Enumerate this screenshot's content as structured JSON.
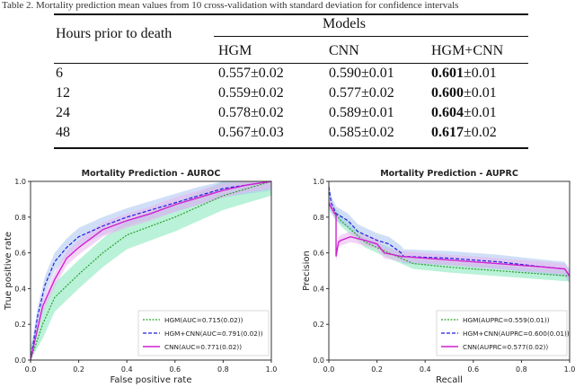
{
  "caption": "Table 2. Mortality prediction mean values from 10 cross-validation with standard deviation for confidence intervals",
  "table": {
    "row_header": "Hours prior to death",
    "group_header": "Models",
    "columns": [
      "HGM",
      "CNN",
      "HGM+CNN"
    ],
    "rows": [
      {
        "hours": "6",
        "hgm": "0.557±0.02",
        "cnn": "0.590±0.01",
        "hgm_cnn": "0.601±0.01"
      },
      {
        "hours": "12",
        "hgm": "0.559±0.02",
        "cnn": "0.577±0.02",
        "hgm_cnn": "0.600±0.01"
      },
      {
        "hours": "24",
        "hgm": "0.578±0.02",
        "cnn": "0.589±0.01",
        "hgm_cnn": "0.604±0.01"
      },
      {
        "hours": "48",
        "hgm": "0.567±0.03",
        "cnn": "0.585±0.02",
        "hgm_cnn": "0.617±0.02"
      }
    ],
    "bold_column": "HGM+CNN"
  },
  "chart_data": [
    {
      "type": "line",
      "title": "Mortality Prediction - AUROC",
      "xlabel": "False positive rate",
      "ylabel": "True positive rate",
      "xlim": [
        0,
        1
      ],
      "ylim": [
        0,
        1
      ],
      "ticks": [
        "0.0",
        "0.2",
        "0.4",
        "0.6",
        "0.8",
        "1.0"
      ],
      "legend": "bottom-right",
      "grid": false,
      "series": [
        {
          "name": "HGM(AUC=0.715(0.02))",
          "color": "#2ca02c",
          "dash": "dotted",
          "band_color": "#7fe8b8",
          "band": 0.08,
          "x": [
            0,
            0.05,
            0.1,
            0.2,
            0.3,
            0.4,
            0.5,
            0.6,
            0.7,
            0.8,
            0.9,
            1
          ],
          "y": [
            0,
            0.2,
            0.35,
            0.48,
            0.6,
            0.7,
            0.75,
            0.8,
            0.86,
            0.92,
            0.96,
            1
          ]
        },
        {
          "name": "HGM+CNN(AUC=0.791(0.02))",
          "color": "#1f1fe0",
          "dash": "dashed",
          "band_color": "#a9c4f0",
          "band": 0.05,
          "x": [
            0,
            0.03,
            0.06,
            0.1,
            0.15,
            0.2,
            0.3,
            0.4,
            0.5,
            0.6,
            0.7,
            0.8,
            0.9,
            1
          ],
          "y": [
            0,
            0.25,
            0.42,
            0.55,
            0.63,
            0.69,
            0.75,
            0.8,
            0.84,
            0.88,
            0.92,
            0.96,
            0.98,
            1
          ]
        },
        {
          "name": "CNN(AUC=0.771(0.02))",
          "color": "#d020d0",
          "dash": "solid",
          "band_color": "#e9b3ee",
          "band": 0.04,
          "x": [
            0,
            0.05,
            0.1,
            0.15,
            0.2,
            0.3,
            0.4,
            0.5,
            0.6,
            0.7,
            0.8,
            0.9,
            1
          ],
          "y": [
            0,
            0.3,
            0.45,
            0.57,
            0.63,
            0.73,
            0.78,
            0.82,
            0.87,
            0.91,
            0.95,
            0.98,
            1
          ]
        }
      ]
    },
    {
      "type": "line",
      "title": "Mortality Prediction - AUPRC",
      "xlabel": "Recall",
      "ylabel": "Precision",
      "xlim": [
        0,
        1
      ],
      "ylim": [
        0,
        1
      ],
      "ticks": [
        "0.0",
        "0.2",
        "0.4",
        "0.6",
        "0.8",
        "1.0"
      ],
      "legend": "bottom-right",
      "grid": false,
      "series": [
        {
          "name": "HGM(AUPRC=0.559(0.01))",
          "color": "#2ca02c",
          "dash": "dotted",
          "band_color": "#7fe8b8",
          "band": 0.03,
          "x": [
            0,
            0.05,
            0.1,
            0.15,
            0.2,
            0.25,
            0.3,
            0.35,
            0.5,
            0.7,
            0.9,
            1
          ],
          "y": [
            0.87,
            0.78,
            0.72,
            0.66,
            0.63,
            0.6,
            0.57,
            0.54,
            0.52,
            0.5,
            0.48,
            0.47
          ]
        },
        {
          "name": "HGM+CNN(AUPRC=0.600(0.01))",
          "color": "#1f1fe0",
          "dash": "dashed",
          "band_color": "#a9c4f0",
          "band": 0.04,
          "x": [
            0,
            0.01,
            0.03,
            0.08,
            0.12,
            0.2,
            0.25,
            0.3,
            0.31,
            0.5,
            0.7,
            0.9,
            0.98,
            1
          ],
          "y": [
            0.97,
            0.88,
            0.82,
            0.78,
            0.72,
            0.67,
            0.65,
            0.6,
            0.58,
            0.57,
            0.55,
            0.52,
            0.51,
            0.47
          ]
        },
        {
          "name": "CNN(AUPRC=0.577(0.02))",
          "color": "#d020d0",
          "dash": "solid",
          "band_color": "#e9b3ee",
          "band": 0.03,
          "x": [
            0,
            0.02,
            0.03,
            0.03,
            0.04,
            0.05,
            0.09,
            0.15,
            0.2,
            0.23,
            0.3,
            0.5,
            0.7,
            0.9,
            0.98,
            1
          ],
          "y": [
            0.88,
            0.83,
            0.81,
            0.58,
            0.66,
            0.67,
            0.69,
            0.67,
            0.65,
            0.6,
            0.58,
            0.56,
            0.54,
            0.52,
            0.51,
            0.47
          ]
        }
      ]
    }
  ]
}
